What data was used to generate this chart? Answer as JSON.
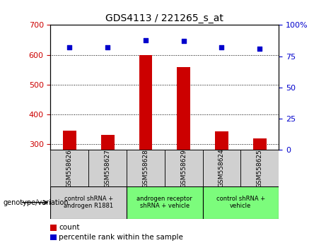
{
  "title": "GDS4113 / 221265_s_at",
  "samples": [
    "GSM558626",
    "GSM558627",
    "GSM558628",
    "GSM558629",
    "GSM558624",
    "GSM558625"
  ],
  "counts": [
    345,
    330,
    600,
    558,
    342,
    318
  ],
  "percentile_ranks": [
    82,
    82,
    88,
    87,
    82,
    81
  ],
  "ylim_left": [
    280,
    700
  ],
  "ylim_right": [
    0,
    100
  ],
  "yticks_left": [
    300,
    400,
    500,
    600,
    700
  ],
  "yticks_right": [
    0,
    25,
    50,
    75,
    100
  ],
  "group_ranges": [
    [
      0,
      1,
      "control shRNA +\nandrogen R1881",
      "#d0d0d0"
    ],
    [
      2,
      3,
      "androgen receptor\nshRNA + vehicle",
      "#7cfc7c"
    ],
    [
      4,
      5,
      "control shRNA +\nvehicle",
      "#7cfc7c"
    ]
  ],
  "bar_color": "#cc0000",
  "dot_color": "#0000cc",
  "bar_width": 0.35,
  "left_color": "#cc0000",
  "right_color": "#0000cc",
  "sample_box_color": "#d0d0d0",
  "genotype_label": "genotype/variation",
  "legend_count": "count",
  "legend_percentile": "percentile rank within the sample"
}
